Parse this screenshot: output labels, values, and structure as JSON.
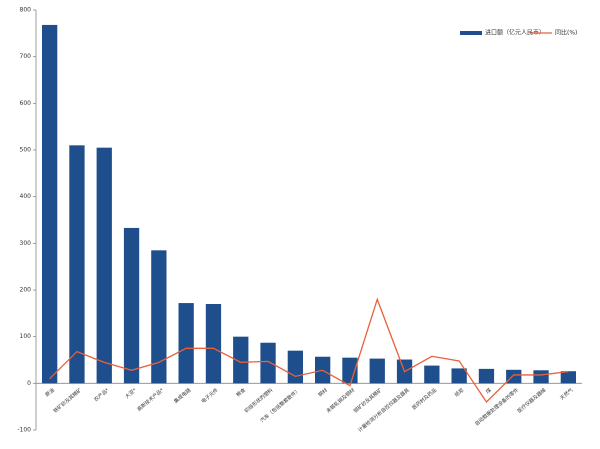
{
  "chart_data": {
    "type": "bar_line",
    "categories": [
      "原油",
      "铁矿砂及其精矿",
      "农产品*",
      "大豆*",
      "高新技术产品*",
      "集成电路",
      "电子元件",
      "粮食",
      "初级形状的塑料",
      "汽车（包括整套散件）",
      "钢材",
      "未锻轧铜及铜材",
      "铜矿砂及其精矿",
      "计量检测分析自控仪器及器具",
      "医药材及药品",
      "纸浆",
      "煤",
      "自动数据处理设备的零件",
      "医疗仪器及器械",
      "天然气"
    ],
    "series": [
      {
        "name": "进口额（亿元人民币）",
        "color": "#1f4e8c",
        "kind": "bar",
        "values": [
          768,
          510,
          505,
          333,
          285,
          172,
          170,
          100,
          87,
          70,
          57,
          55,
          53,
          51,
          38,
          32,
          31,
          29,
          28,
          26
        ]
      },
      {
        "name": "同比(%)",
        "color": "#e8603c",
        "kind": "line",
        "values": [
          10,
          68,
          45,
          28,
          45,
          75,
          75,
          45,
          47,
          15,
          28,
          -5,
          180,
          25,
          58,
          48,
          -40,
          18,
          18,
          25
        ]
      }
    ],
    "ylim": [
      -100,
      800
    ],
    "yticks": [
      -100,
      0,
      100,
      200,
      300,
      400,
      500,
      600,
      700,
      800
    ]
  }
}
